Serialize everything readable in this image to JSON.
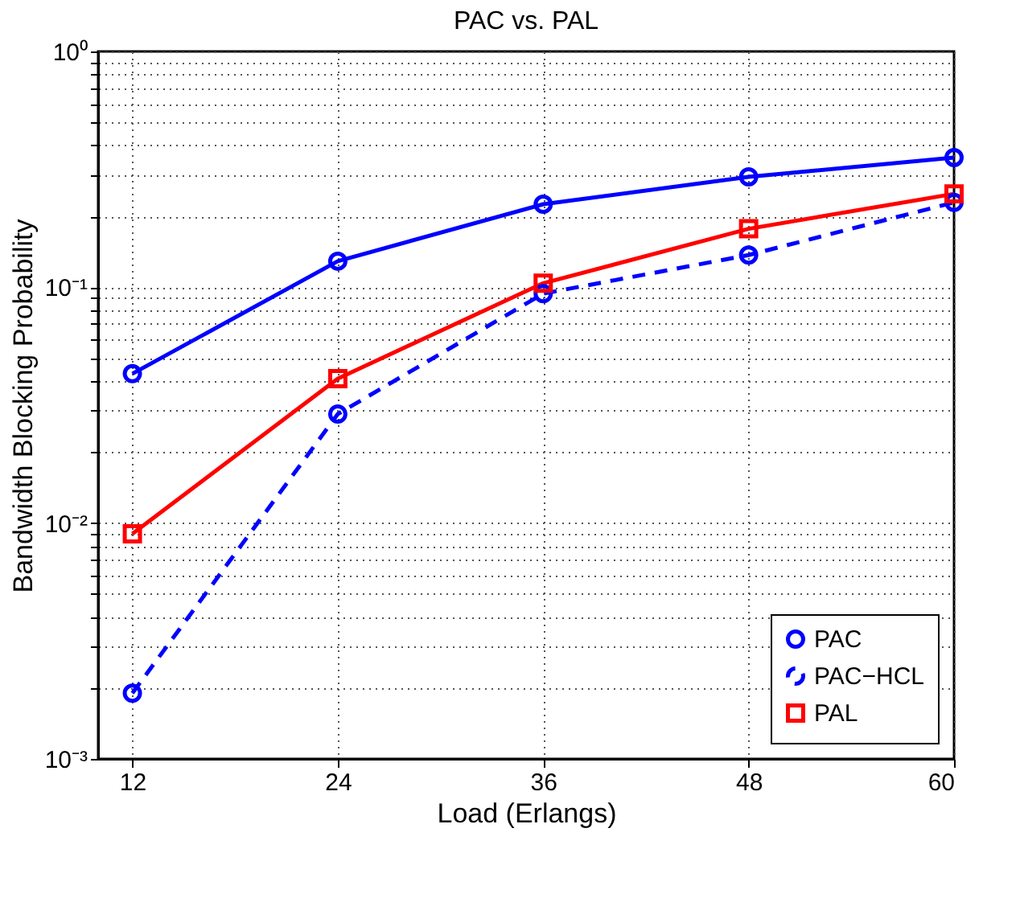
{
  "chart_data": {
    "type": "line",
    "title": "PAC vs. PAL",
    "xlabel": "Load (Erlangs)",
    "ylabel": "Bandwidth Blocking Probability",
    "x": [
      12,
      24,
      36,
      48,
      60
    ],
    "series": [
      {
        "name": "PAC",
        "color": "#0000ff",
        "marker": "circle",
        "line_style": "solid",
        "values": [
          0.043,
          0.129,
          0.225,
          0.294,
          0.355
        ]
      },
      {
        "name": "PAC−HCL",
        "color": "#0000ff",
        "marker": "circle",
        "line_style": "dashed",
        "values": [
          0.0019,
          0.029,
          0.094,
          0.137,
          0.229
        ]
      },
      {
        "name": "PAL",
        "color": "#ff0000",
        "marker": "square",
        "line_style": "solid",
        "values": [
          0.009,
          0.041,
          0.104,
          0.177,
          0.249
        ]
      }
    ],
    "log": "y",
    "xlim": [
      10,
      60
    ],
    "xticks": [
      12,
      24,
      36,
      48,
      60
    ],
    "ylim": [
      0.001,
      1
    ],
    "yticks": [
      {
        "value": 0.001,
        "label": "10⁻³"
      },
      {
        "value": 0.002,
        "label": null
      },
      {
        "value": 0.003,
        "label": null
      },
      {
        "value": 0.004,
        "label": null
      },
      {
        "value": 0.005,
        "label": null
      },
      {
        "value": 0.006,
        "label": null
      },
      {
        "value": 0.007,
        "label": null
      },
      {
        "value": 0.008,
        "label": null
      },
      {
        "value": 0.009,
        "label": null
      },
      {
        "value": 0.01,
        "label": "10⁻²"
      },
      {
        "value": 0.02,
        "label": null
      },
      {
        "value": 0.03,
        "label": null
      },
      {
        "value": 0.04,
        "label": null
      },
      {
        "value": 0.05,
        "label": null
      },
      {
        "value": 0.06,
        "label": null
      },
      {
        "value": 0.07,
        "label": null
      },
      {
        "value": 0.08,
        "label": null
      },
      {
        "value": 0.09,
        "label": null
      },
      {
        "value": 0.1,
        "label": "10⁻¹"
      },
      {
        "value": 0.2,
        "label": null
      },
      {
        "value": 0.3,
        "label": null
      },
      {
        "value": 0.4,
        "label": null
      },
      {
        "value": 0.5,
        "label": null
      },
      {
        "value": 0.6,
        "label": null
      },
      {
        "value": 0.7,
        "label": null
      },
      {
        "value": 0.8,
        "label": null
      },
      {
        "value": 0.9,
        "label": null
      },
      {
        "value": 1,
        "label": "10⁰"
      }
    ],
    "grid": true,
    "legend": "bottom right"
  }
}
